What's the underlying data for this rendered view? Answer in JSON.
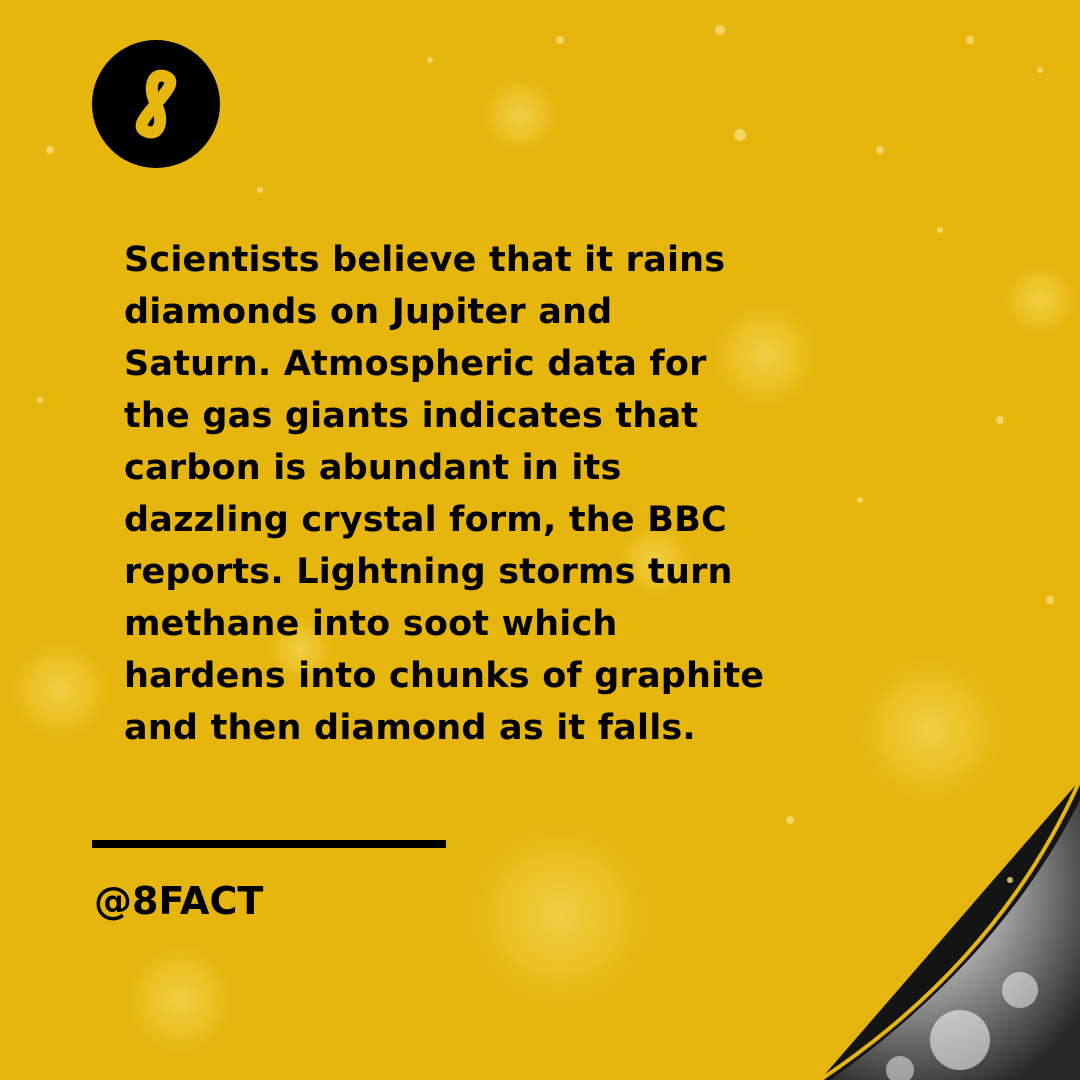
{
  "colors": {
    "background": "#e6b60e",
    "text": "#000000",
    "logo_background": "#000000",
    "logo_mark": "#e6b60e"
  },
  "logo": {
    "icon": "infinity-eight-icon"
  },
  "fact": {
    "text": "Scientists believe that it rains\ndiamonds on Jupiter and\nSaturn. Atmospheric data for\nthe gas giants indicates that\ncarbon is abundant in its\ndazzling crystal form, the BBC\nreports. Lightning storms turn\nmethane into soot which\nhardens into chunks of graphite\nand then diamond as it falls."
  },
  "footer": {
    "handle": "@8FACT"
  }
}
